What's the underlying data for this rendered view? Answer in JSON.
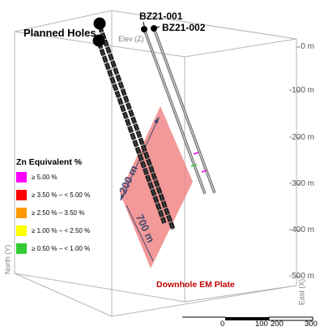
{
  "labels": {
    "planned_holes": "Planned Holes",
    "hole_1": "BZ21-001",
    "hole_2": "BZ21-002",
    "elev_axis": "Elev (Z)",
    "north_axis": "North (Y)",
    "east_axis": "East (X)",
    "em_plate": "Downhole EM Plate",
    "dim_short": "200 m",
    "dim_long": "700 m"
  },
  "depth_ticks": [
    "0 m",
    "-100 m",
    "-200 m",
    "-300 m",
    "-400 m",
    "-500 m"
  ],
  "legend": {
    "title": "Zn Equivalent %",
    "items": [
      {
        "label": "≥ 5.00 %",
        "color": "#ff00ff"
      },
      {
        "label": "≥ 3.50 % – < 5.00 %",
        "color": "#ff0000"
      },
      {
        "label": "≥ 2.50 % – 3.50 %",
        "color": "#ff9900"
      },
      {
        "label": "≥ 1.00 % – < 2.50 %",
        "color": "#ffff00"
      },
      {
        "label": "≥ 0.50 % – < 1.00 %",
        "color": "#33cc33"
      }
    ]
  },
  "scale_bar": {
    "labels": [
      "0",
      "100",
      "200",
      "300"
    ]
  },
  "colors": {
    "plate": "#f08080",
    "plate_label": "#c00000",
    "box": "#b4b4b4",
    "dimension": "#404a6e"
  }
}
